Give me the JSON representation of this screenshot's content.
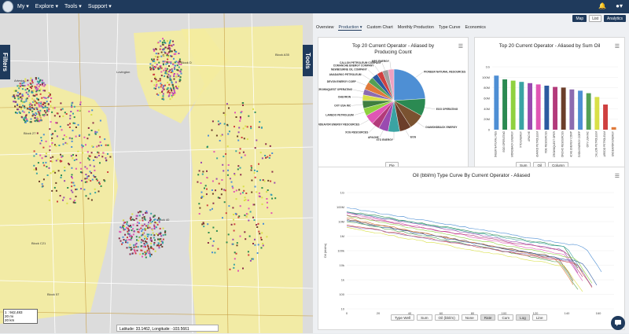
{
  "topnav": {
    "items": [
      "My ▾",
      "Explore ▾",
      "Tools ▾",
      "Support ▾"
    ],
    "icons": [
      "bell-icon",
      "user-icon"
    ]
  },
  "map": {
    "filters_label": "Filters",
    "tools_label": "Tools",
    "scale_text": [
      "1 : 942,483",
      "20 mi",
      "20 km"
    ],
    "latlon": "Latitude: 33.1462, Longitude: -103.5661",
    "place_labels": [
      "Artesia",
      "Lovington",
      "Block D",
      "Block A35",
      "Block 27",
      "Block 40",
      "Block C21",
      "Block 57"
    ]
  },
  "view_buttons": [
    "Map",
    "List",
    "Analytics"
  ],
  "tabs": [
    "Overview",
    "Production ▾",
    "Custom Chart",
    "Monthly Production",
    "Type Curve",
    "Economics"
  ],
  "pie_card": {
    "title": "Top 20 Current Operator - Aliased by Producing Count",
    "control": "Pie",
    "labels": [
      "MPS ENERGY",
      "CALLON PETROLEUM COMPANY",
      "COMANCHE ENERGY COMPANY",
      "NEWBOURNE OIL COMPANY",
      "ANADARKO PETROLEUM",
      "DEVON ENERGY CORP",
      "CROWNQUEST OPERATING",
      "CHEVRON",
      "OXY USA INC",
      "LAREDO PETROLEUM",
      "ENDEAVOR ENERGY RESOURCES",
      "XOG RESOURCES",
      "APACHE",
      "XTO ENERGY",
      "EOG",
      "DIAMONDBACK ENERGY",
      "EOG OPERATING",
      "PIONEER NATURAL RESOURCES"
    ]
  },
  "bar_card": {
    "title": "Top 20 Current Operator - Aliased by Sum Oil",
    "controls": [
      "Sum",
      "Oil",
      "Column"
    ],
    "yticks": [
      "1G",
      "100M",
      "80M",
      "60M",
      "40M",
      "20M",
      "0"
    ]
  },
  "line_card": {
    "title": "Oil (bbl/m) Type Curve By Current Operator - Aliased",
    "ylabel": "Oil (bbl/m)",
    "yticks": [
      "1G",
      "100M",
      "10M",
      "1M",
      "100k",
      "10k",
      "1k",
      "100",
      "10"
    ],
    "xticks": [
      "0",
      "20",
      "40",
      "60",
      "80",
      "100",
      "120",
      "140",
      "160"
    ],
    "controls": [
      "Type Well",
      "Sum",
      "Oil (bbl/m)",
      "None",
      "Rate",
      "Cum",
      "Log",
      "Line"
    ]
  },
  "chart_data": [
    {
      "type": "pie",
      "title": "Top 20 Current Operator - Aliased by Producing Count",
      "categories": [
        "PIONEER NATURAL RESOURCES",
        "EOG OPERATING",
        "DIAMONDBACK ENERGY",
        "EOG",
        "XTO ENERGY",
        "APACHE",
        "XOG RESOURCES",
        "ENDEAVOR ENERGY RESOURCES",
        "LAREDO PETROLEUM",
        "OXY USA INC",
        "CHEVRON",
        "CROWNQUEST OPERATING",
        "DEVON ENERGY CORP",
        "ANADARKO PETROLEUM",
        "NEWBOURNE OIL COMPANY",
        "COMANCHE ENERGY COMPANY",
        "CALLON PETROLEUM COMPANY",
        "MPS ENERGY"
      ],
      "values": [
        24,
        9,
        8,
        6,
        6,
        5,
        4,
        5,
        4,
        4,
        3,
        3,
        4,
        3,
        3,
        3,
        3,
        3
      ],
      "colors": [
        "#4e8fd4",
        "#2b8a52",
        "#7a5230",
        "#6b3e2a",
        "#3aa3a3",
        "#9a4ab0",
        "#b33a7a",
        "#e056b4",
        "#8fd13f",
        "#3f7f3f",
        "#d9e048",
        "#8c6bb0",
        "#e07a3a",
        "#54a054",
        "#2c5aa0",
        "#cf4040",
        "#a0a0a0",
        "#f0a0c0"
      ]
    },
    {
      "type": "bar",
      "title": "Top 20 Current Operator - Aliased by Sum Oil",
      "categories": [
        "PIONEER NATURAL RES",
        "EOG OPERATING",
        "DIAMONDBACK ENERGY",
        "XTO ENERGY",
        "APACHE",
        "ANADARKO PETROLEUM",
        "XOG RESOURCES",
        "CROWNQUEST OPER",
        "CONCHO RESOURCES",
        "COMANCHE ENERGY COMP",
        "DEVON ENERGY CORP",
        "OXY USA INC",
        "CALLON PETROLEUM",
        "LAREDO PETROLEUM",
        "ENDEAVOR ENERGY"
      ],
      "values": [
        86,
        80,
        78,
        76,
        74,
        72,
        70,
        68,
        67,
        64,
        62,
        58,
        52,
        40,
        4
      ],
      "colors": [
        "#4e8fd4",
        "#2b8a52",
        "#8fd13f",
        "#3aa3a3",
        "#9a4ab0",
        "#e056b4",
        "#2c5aa0",
        "#b33a7a",
        "#6b3e2a",
        "#8c6bb0",
        "#4e8fd4",
        "#54a054",
        "#d9e048",
        "#cf4040",
        "#e07a3a"
      ],
      "ylim": [
        0,
        100
      ]
    },
    {
      "type": "line",
      "title": "Oil (bbl/m) Type Curve By Current Operator - Aliased",
      "ylabel": "Oil (bbl/m)",
      "xlim": [
        0,
        160
      ],
      "log_scale": true,
      "series_colors": [
        "#4e8fd4",
        "#2b8a52",
        "#9a4ab0",
        "#e056b4",
        "#3aa3a3",
        "#8fd13f",
        "#b33a7a",
        "#6b3e2a",
        "#e07a3a",
        "#2c5aa0",
        "#54a054",
        "#cf4040",
        "#8c6bb0",
        "#d9e048"
      ]
    }
  ]
}
